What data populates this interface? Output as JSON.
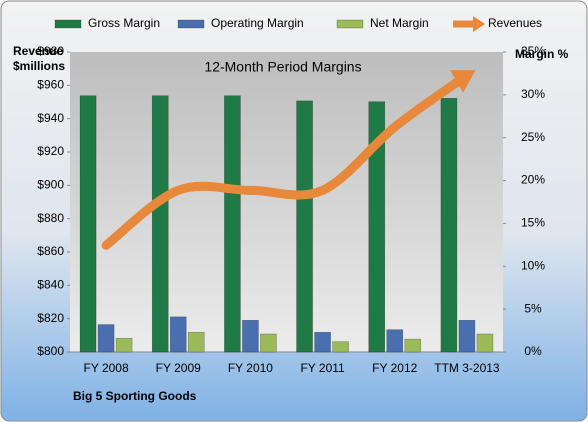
{
  "chart_data": {
    "type": "bar-line",
    "title": "12-Month Period Margins",
    "ylabel": [
      "Revenue",
      "$millions"
    ],
    "y2label": "Margin %",
    "footer": "Big 5 Sporting Goods",
    "categories": [
      "FY 2008",
      "FY 2009",
      "FY 2010",
      "FY 2011",
      "FY 2012",
      "TTM 3-2013"
    ],
    "series": [
      {
        "name": "Gross Margin",
        "type": "bar",
        "axis": "y2",
        "color": "#1f7a45",
        "values": [
          29.9,
          29.9,
          29.9,
          29.3,
          29.2,
          29.6
        ]
      },
      {
        "name": "Operating Margin",
        "type": "bar",
        "axis": "y2",
        "color": "#4a6fb0",
        "values": [
          3.2,
          4.1,
          3.7,
          2.3,
          2.6,
          3.7
        ]
      },
      {
        "name": "Net Margin",
        "type": "bar",
        "axis": "y2",
        "color": "#9bbb59",
        "values": [
          1.6,
          2.3,
          2.1,
          1.2,
          1.5,
          2.1
        ]
      },
      {
        "name": "Revenues",
        "type": "line",
        "axis": "y",
        "color": "#e8883a",
        "values": [
          864,
          897,
          897,
          897,
          935,
          966
        ]
      }
    ],
    "ylim": [
      800,
      980
    ],
    "yticks": [
      {
        "value": 800,
        "label": "$800"
      },
      {
        "value": 820,
        "label": "$820"
      },
      {
        "value": 840,
        "label": "$840"
      },
      {
        "value": 860,
        "label": "$860"
      },
      {
        "value": 880,
        "label": "$880"
      },
      {
        "value": 900,
        "label": "$900"
      },
      {
        "value": 920,
        "label": "$920"
      },
      {
        "value": 940,
        "label": "$940"
      },
      {
        "value": 960,
        "label": "$960"
      },
      {
        "value": 980,
        "label": "$980"
      }
    ],
    "y2lim": [
      0,
      35
    ],
    "y2ticks": [
      {
        "value": 0,
        "label": "0%"
      },
      {
        "value": 5,
        "label": "5%"
      },
      {
        "value": 10,
        "label": "10%"
      },
      {
        "value": 15,
        "label": "15%"
      },
      {
        "value": 20,
        "label": "20%"
      },
      {
        "value": 25,
        "label": "25%"
      },
      {
        "value": 30,
        "label": "30%"
      },
      {
        "value": 35,
        "label": "35%"
      }
    ],
    "legend": "top"
  }
}
